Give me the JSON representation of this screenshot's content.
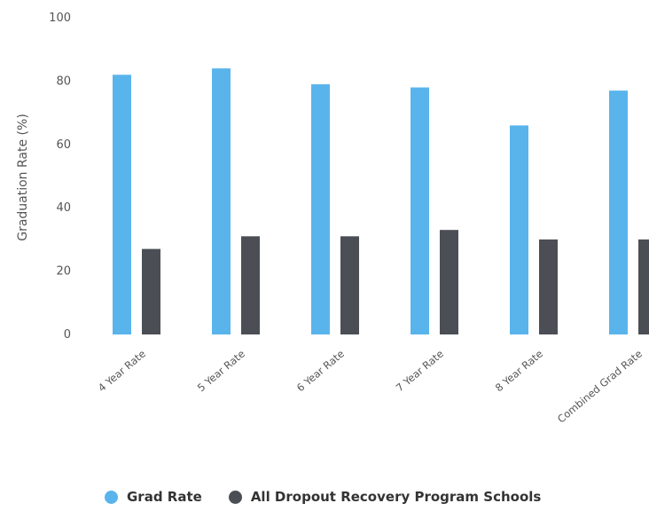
{
  "chart_data": {
    "type": "bar",
    "title": "",
    "xlabel": "",
    "ylabel": "Graduation Rate (%)",
    "ylim": [
      0,
      100
    ],
    "yticks": [
      0,
      20,
      40,
      60,
      80,
      100
    ],
    "grid": false,
    "legend_position": "bottom",
    "categories": [
      "4 Year Rate",
      "5 Year Rate",
      "6 Year Rate",
      "7 Year Rate",
      "8 Year Rate",
      "Combined Grad Rate"
    ],
    "series": [
      {
        "name": "Grad Rate",
        "color": "#5ab4ec",
        "values": [
          82,
          84,
          79,
          78,
          66,
          77
        ]
      },
      {
        "name": "All Dropout Recovery Program Schools",
        "color": "#4b4f55",
        "values": [
          27,
          31,
          31,
          33,
          30,
          30
        ]
      }
    ]
  }
}
